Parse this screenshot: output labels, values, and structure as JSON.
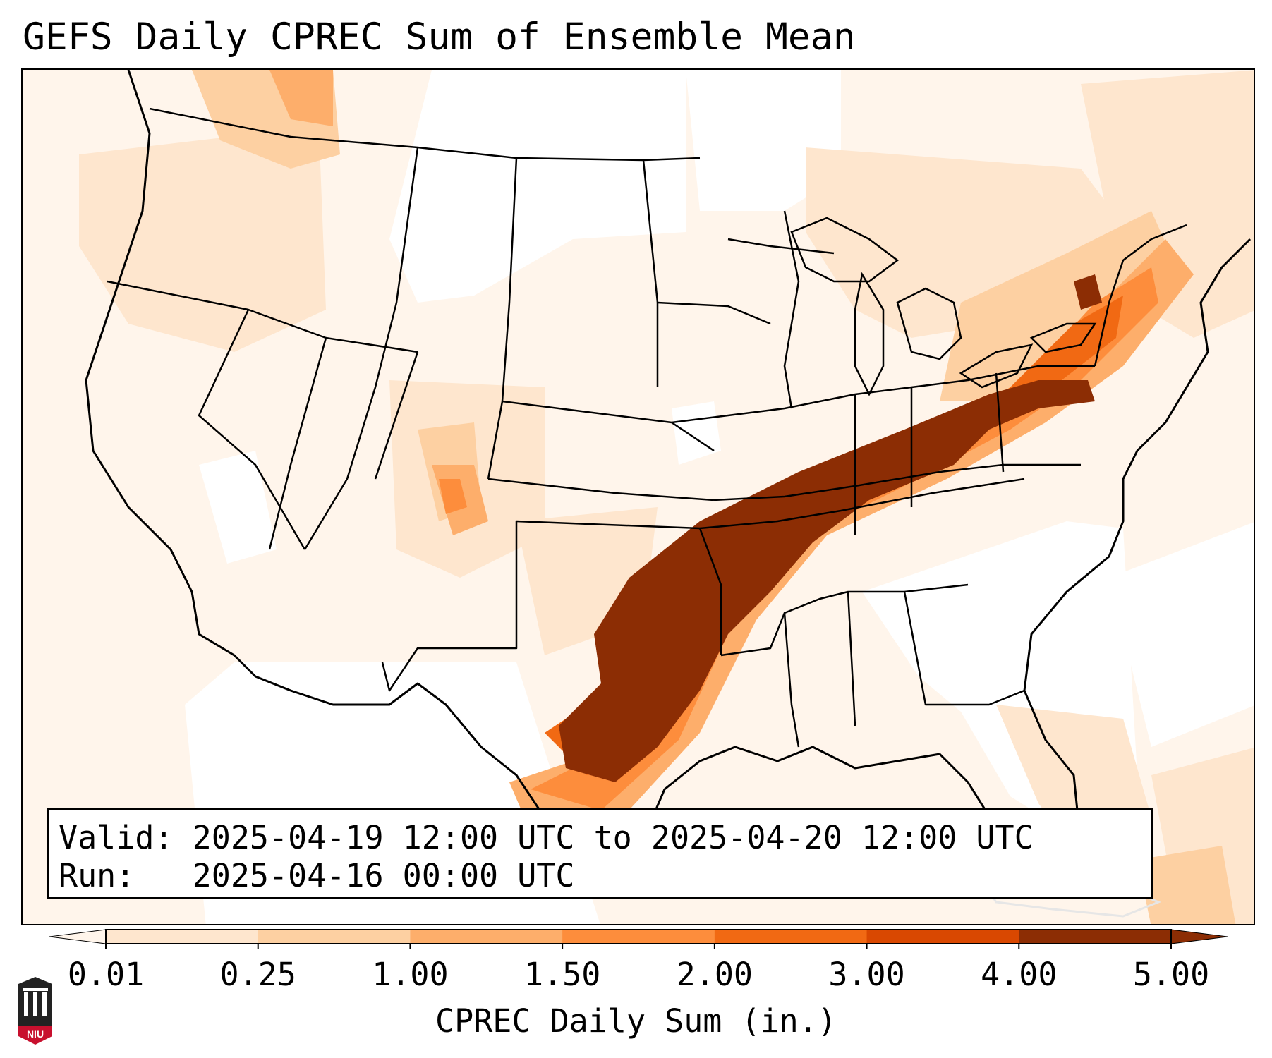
{
  "title": "GEFS Daily CPREC Sum of Ensemble Mean",
  "info_box": {
    "valid_line": "Valid: 2025-04-19 12:00 UTC to 2025-04-20 12:00 UTC",
    "run_line": "Run:   2025-04-16 00:00 UTC"
  },
  "colorbar": {
    "ticks": [
      "0.01",
      "0.25",
      "1.00",
      "1.50",
      "2.00",
      "3.00",
      "4.00",
      "5.00"
    ],
    "colors": [
      "#fff5eb",
      "#fee6ce",
      "#fdd0a2",
      "#fdae6b",
      "#fd8d3c",
      "#f16913",
      "#d94801",
      "#8c2d04"
    ],
    "label": "CPREC Daily Sum (in.)"
  },
  "logo": {
    "text": "NIU"
  },
  "chart_data": {
    "type": "heatmap",
    "title": "GEFS Daily CPREC Sum of Ensemble Mean",
    "variable": "CPREC Daily Sum",
    "units": "in.",
    "levels": [
      0.01,
      0.25,
      1.0,
      1.5,
      2.0,
      3.0,
      4.0,
      5.0
    ],
    "extend": "both",
    "region": "Continental United States",
    "valid_start": "2025-04-19 12:00 UTC",
    "valid_end": "2025-04-20 12:00 UTC",
    "run": "2025-04-16 00:00 UTC",
    "maximum_band": "4.00-5.00 in. from central Texas through Oklahoma, Arkansas, Missouri, Illinois, Indiana, Ohio into Pennsylvania"
  }
}
